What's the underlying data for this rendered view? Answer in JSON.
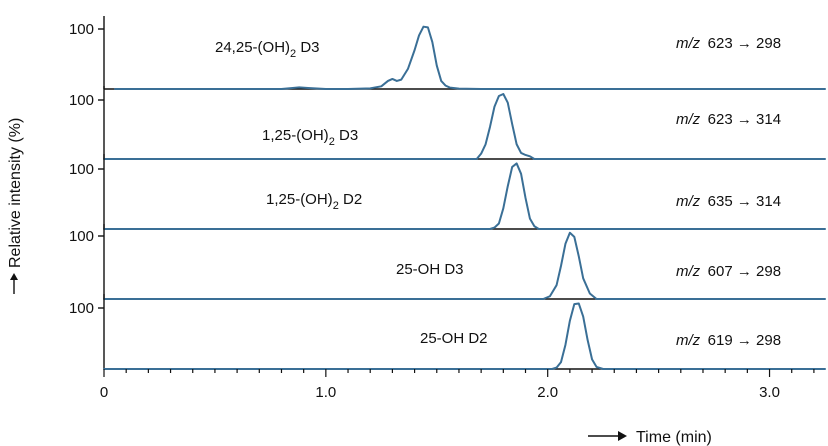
{
  "chart_data": {
    "type": "line",
    "xlabel": "Time (min)",
    "ylabel": "Relative intensity (%)",
    "xlim": [
      0,
      3.25
    ],
    "ylim": [
      0,
      100
    ],
    "x_ticks": [
      "0",
      "1.0",
      "2.0",
      "3.0"
    ],
    "y_tick_label": "100",
    "line_color": "#3a6f96",
    "panels": [
      {
        "compound": "24,25-(OH)",
        "compound_sub": "2",
        "compound_tail": " D3",
        "mz_label": "m/z",
        "transition": "623 → 298",
        "x": [
          0.05,
          0.8,
          0.85,
          0.88,
          0.92,
          1.0,
          1.1,
          1.2,
          1.25,
          1.28,
          1.3,
          1.32,
          1.34,
          1.37,
          1.4,
          1.42,
          1.44,
          1.46,
          1.48,
          1.5,
          1.52,
          1.54,
          1.56,
          1.6,
          1.7,
          1.9,
          3.25
        ],
        "y": [
          0,
          0,
          1.5,
          2.5,
          1.5,
          0,
          0,
          1.0,
          4.0,
          12.0,
          15.0,
          12.0,
          14.0,
          30.0,
          58.0,
          80.0,
          93.0,
          92.0,
          70.0,
          35.0,
          12.0,
          5.0,
          2.0,
          0.5,
          0,
          0,
          0
        ]
      },
      {
        "compound": "1,25-(OH)",
        "compound_sub": "2",
        "compound_tail": " D3",
        "mz_label": "m/z",
        "transition": "623 → 314",
        "x": [
          0.0,
          1.68,
          1.7,
          1.72,
          1.74,
          1.76,
          1.78,
          1.8,
          1.82,
          1.84,
          1.86,
          1.88,
          1.9,
          1.92,
          1.94,
          3.25
        ],
        "y": [
          0,
          0,
          8.0,
          22.0,
          48.0,
          78.0,
          94.0,
          97.0,
          84.0,
          52.0,
          22.0,
          9.0,
          6.0,
          4.0,
          0,
          0
        ]
      },
      {
        "compound": "1,25-(OH)",
        "compound_sub": "2",
        "compound_tail": " D2",
        "mz_label": "m/z",
        "transition": "635 → 314",
        "x": [
          0.0,
          1.74,
          1.76,
          1.78,
          1.8,
          1.82,
          1.84,
          1.86,
          1.88,
          1.9,
          1.92,
          1.94,
          1.96,
          3.25
        ],
        "y": [
          0,
          0,
          2.0,
          8.0,
          30.0,
          62.0,
          90.0,
          95.0,
          80.0,
          45.0,
          15.0,
          4.0,
          0,
          0
        ]
      },
      {
        "compound": "25-OH D3",
        "compound_sub": "",
        "compound_tail": "",
        "mz_label": "m/z",
        "transition": "607 → 298",
        "x": [
          0.0,
          1.98,
          2.01,
          2.04,
          2.06,
          2.08,
          2.1,
          2.12,
          2.14,
          2.16,
          2.19,
          2.22,
          3.25
        ],
        "y": [
          0,
          0,
          4.0,
          20.0,
          48.0,
          80.0,
          96.0,
          90.0,
          62.0,
          30.0,
          8.0,
          0,
          0
        ]
      },
      {
        "compound": "25-OH D2",
        "compound_sub": "",
        "compound_tail": "",
        "mz_label": "m/z",
        "transition": "619 → 298",
        "x": [
          0.0,
          2.02,
          2.04,
          2.06,
          2.08,
          2.1,
          2.12,
          2.14,
          2.16,
          2.18,
          2.2,
          2.22,
          2.25,
          3.25
        ],
        "y": [
          0,
          0,
          2.0,
          10.0,
          35.0,
          70.0,
          94.0,
          95.0,
          76.0,
          42.0,
          14.0,
          3.0,
          0,
          0
        ]
      }
    ]
  }
}
